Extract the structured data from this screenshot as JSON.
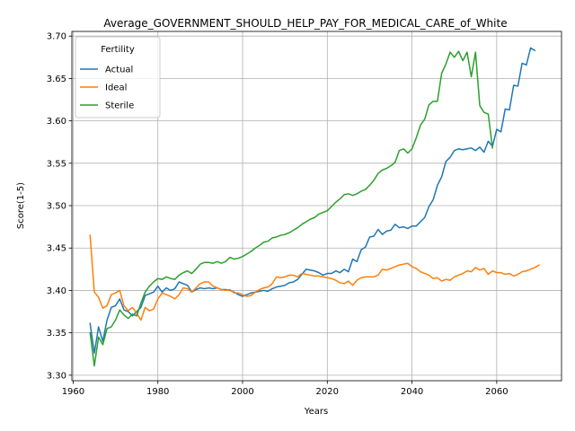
{
  "chart_data": {
    "type": "line",
    "title": "Average_GOVERNMENT_SHOULD_HELP_PAY_FOR_MEDICAL_CARE_of_White",
    "xlabel": "Years",
    "ylabel": "Score(1-5)",
    "xlim": [
      1959.7,
      2075.3
    ],
    "ylim": [
      3.2935,
      3.7055
    ],
    "xticks": [
      1960,
      1980,
      2000,
      2020,
      2040,
      2060
    ],
    "yticks": [
      3.3,
      3.35,
      3.4,
      3.45,
      3.5,
      3.55,
      3.6,
      3.65,
      3.7
    ],
    "grid": true,
    "legend": {
      "title": "Fertility",
      "position": "top-left"
    },
    "x_start": 1964,
    "series": [
      {
        "name": "Actual",
        "color": "#1f77b4",
        "values": [
          3.361,
          3.326,
          3.357,
          3.34,
          3.365,
          3.38,
          3.382,
          3.39,
          3.377,
          3.375,
          3.37,
          3.375,
          3.38,
          3.394,
          3.396,
          3.398,
          3.405,
          3.398,
          3.403,
          3.4,
          3.402,
          3.41,
          3.408,
          3.406,
          3.398,
          3.401,
          3.403,
          3.402,
          3.403,
          3.402,
          3.403,
          3.401,
          3.401,
          3.4,
          3.398,
          3.395,
          3.393,
          3.395,
          3.397,
          3.398,
          3.399,
          3.4,
          3.399,
          3.402,
          3.404,
          3.405,
          3.406,
          3.409,
          3.41,
          3.413,
          3.419,
          3.425,
          3.424,
          3.423,
          3.421,
          3.418,
          3.42,
          3.42,
          3.423,
          3.421,
          3.425,
          3.422,
          3.437,
          3.434,
          3.448,
          3.451,
          3.463,
          3.464,
          3.472,
          3.466,
          3.47,
          3.471,
          3.478,
          3.474,
          3.475,
          3.473,
          3.476,
          3.476,
          3.481,
          3.486,
          3.499,
          3.507,
          3.524,
          3.534,
          3.552,
          3.557,
          3.565,
          3.567,
          3.566,
          3.567,
          3.568,
          3.565,
          3.569,
          3.563,
          3.576,
          3.57,
          3.59,
          3.587,
          3.614,
          3.613,
          3.642,
          3.641,
          3.668,
          3.666,
          3.686,
          3.683
        ]
      },
      {
        "name": "Ideal",
        "color": "#ff7f0e",
        "values": [
          3.465,
          3.398,
          3.392,
          3.379,
          3.382,
          3.395,
          3.397,
          3.4,
          3.382,
          3.376,
          3.38,
          3.373,
          3.365,
          3.38,
          3.376,
          3.378,
          3.39,
          3.397,
          3.395,
          3.393,
          3.39,
          3.395,
          3.403,
          3.402,
          3.398,
          3.403,
          3.408,
          3.41,
          3.41,
          3.405,
          3.403,
          3.401,
          3.4,
          3.401,
          3.397,
          3.397,
          3.395,
          3.393,
          3.394,
          3.398,
          3.401,
          3.403,
          3.404,
          3.408,
          3.416,
          3.415,
          3.416,
          3.418,
          3.418,
          3.416,
          3.42,
          3.419,
          3.418,
          3.417,
          3.417,
          3.416,
          3.415,
          3.414,
          3.412,
          3.409,
          3.408,
          3.411,
          3.406,
          3.412,
          3.415,
          3.416,
          3.416,
          3.416,
          3.418,
          3.425,
          3.424,
          3.426,
          3.428,
          3.43,
          3.431,
          3.432,
          3.428,
          3.426,
          3.422,
          3.42,
          3.418,
          3.414,
          3.415,
          3.411,
          3.413,
          3.412,
          3.416,
          3.418,
          3.42,
          3.423,
          3.422,
          3.427,
          3.424,
          3.426,
          3.419,
          3.423,
          3.421,
          3.421,
          3.419,
          3.42,
          3.417,
          3.419,
          3.422,
          3.423,
          3.425,
          3.427,
          3.43
        ]
      },
      {
        "name": "Sterile",
        "color": "#2ca02c",
        "values": [
          3.35,
          3.311,
          3.345,
          3.336,
          3.355,
          3.357,
          3.365,
          3.377,
          3.371,
          3.367,
          3.372,
          3.37,
          3.385,
          3.398,
          3.405,
          3.41,
          3.414,
          3.413,
          3.416,
          3.414,
          3.413,
          3.418,
          3.421,
          3.423,
          3.42,
          3.425,
          3.431,
          3.433,
          3.433,
          3.432,
          3.434,
          3.432,
          3.434,
          3.439,
          3.437,
          3.438,
          3.44,
          3.443,
          3.446,
          3.45,
          3.453,
          3.457,
          3.458,
          3.462,
          3.463,
          3.465,
          3.466,
          3.468,
          3.471,
          3.474,
          3.478,
          3.481,
          3.484,
          3.486,
          3.49,
          3.492,
          3.494,
          3.499,
          3.504,
          3.508,
          3.513,
          3.514,
          3.512,
          3.514,
          3.517,
          3.519,
          3.524,
          3.53,
          3.538,
          3.542,
          3.544,
          3.547,
          3.551,
          3.565,
          3.567,
          3.562,
          3.567,
          3.58,
          3.595,
          3.602,
          3.619,
          3.623,
          3.623,
          3.656,
          3.667,
          3.681,
          3.675,
          3.682,
          3.671,
          3.681,
          3.652,
          3.681,
          3.618,
          3.61,
          3.608,
          3.568
        ]
      }
    ]
  }
}
